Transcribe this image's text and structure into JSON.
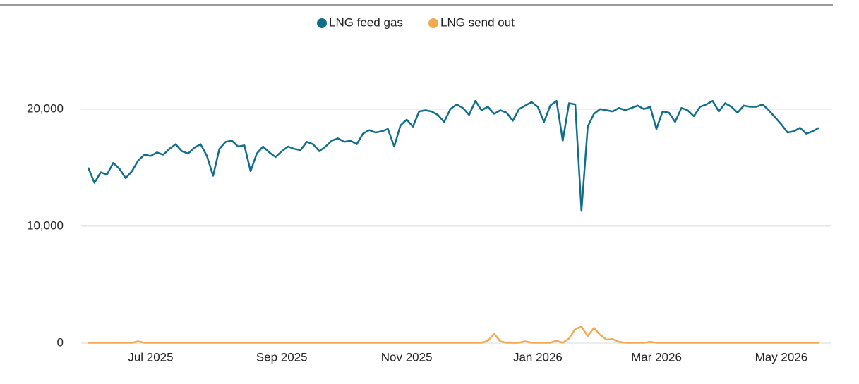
{
  "chart_data": {
    "type": "line",
    "categories": [
      null,
      null,
      null,
      null,
      null,
      null,
      null,
      null,
      null,
      null,
      "Jul 2025",
      null,
      null,
      null,
      null,
      null,
      null,
      null,
      null,
      null,
      null,
      null,
      null,
      null,
      null,
      null,
      null,
      null,
      null,
      null,
      null,
      "Sep 2025",
      null,
      null,
      null,
      null,
      null,
      null,
      null,
      null,
      null,
      null,
      null,
      null,
      null,
      null,
      null,
      null,
      null,
      null,
      null,
      "Nov 2025",
      null,
      null,
      null,
      null,
      null,
      null,
      null,
      null,
      null,
      null,
      null,
      null,
      null,
      null,
      null,
      null,
      null,
      null,
      null,
      null,
      "Jan 2026",
      null,
      null,
      null,
      null,
      null,
      null,
      null,
      null,
      null,
      null,
      null,
      null,
      null,
      null,
      null,
      null,
      null,
      null,
      "Mar 2026",
      null,
      null,
      null,
      null,
      null,
      null,
      null,
      null,
      null,
      null,
      null,
      null,
      null,
      null,
      null,
      null,
      null,
      null,
      null,
      "May 2026",
      null,
      null,
      null,
      null,
      null,
      null
    ],
    "series": [
      {
        "name": "LNG feed gas",
        "color": "#116d8a",
        "values": [
          15000,
          13700,
          14600,
          14400,
          15400,
          14900,
          14100,
          14700,
          15600,
          16100,
          16000,
          16300,
          16100,
          16600,
          17000,
          16400,
          16200,
          16700,
          17000,
          16000,
          14300,
          16600,
          17200,
          17300,
          16800,
          16900,
          14700,
          16200,
          16800,
          16300,
          15900,
          16400,
          16800,
          16600,
          16500,
          17200,
          17000,
          16400,
          16800,
          17300,
          17500,
          17200,
          17300,
          17000,
          17900,
          18200,
          18000,
          18100,
          18300,
          16800,
          18600,
          19100,
          18500,
          19800,
          19900,
          19800,
          19500,
          18900,
          20000,
          20400,
          20100,
          19500,
          20700,
          19900,
          20200,
          19600,
          19900,
          19700,
          19000,
          20000,
          20300,
          20600,
          20200,
          18900,
          20300,
          20700,
          17300,
          20500,
          20400,
          11300,
          18500,
          19600,
          20000,
          19900,
          19800,
          20100,
          19900,
          20100,
          20300,
          20000,
          20200,
          18300,
          19800,
          19700,
          18900,
          20100,
          19900,
          19400,
          20200,
          20400,
          20700,
          19800,
          20500,
          20200,
          19700,
          20300,
          20200,
          20200,
          20400,
          19900,
          19300,
          18700,
          18000,
          18100,
          18400,
          17900,
          18100,
          18400
        ]
      },
      {
        "name": "LNG send out",
        "color": "#f2a950",
        "values": [
          30,
          30,
          30,
          30,
          30,
          30,
          30,
          30,
          150,
          30,
          30,
          30,
          30,
          30,
          30,
          30,
          30,
          30,
          30,
          30,
          30,
          30,
          30,
          30,
          30,
          30,
          30,
          30,
          30,
          30,
          30,
          30,
          30,
          30,
          30,
          30,
          30,
          30,
          30,
          30,
          30,
          30,
          30,
          30,
          30,
          30,
          30,
          30,
          30,
          30,
          30,
          30,
          30,
          30,
          30,
          30,
          30,
          30,
          30,
          30,
          30,
          30,
          30,
          30,
          200,
          800,
          150,
          30,
          30,
          30,
          150,
          30,
          30,
          30,
          30,
          200,
          30,
          400,
          1200,
          1400,
          600,
          1300,
          700,
          300,
          350,
          100,
          30,
          30,
          30,
          30,
          100,
          30,
          30,
          30,
          30,
          30,
          30,
          30,
          30,
          30,
          30,
          30,
          30,
          30,
          30,
          30,
          30,
          30,
          30,
          30,
          30,
          30,
          30,
          30,
          30,
          30,
          30,
          30
        ]
      }
    ],
    "ylim": [
      0,
      23000
    ],
    "yticks": [
      0,
      {
        "value": 10000,
        "label": "10,000"
      },
      {
        "value": 20000,
        "label": "20,000"
      }
    ],
    "grid": true,
    "legend": "top"
  }
}
